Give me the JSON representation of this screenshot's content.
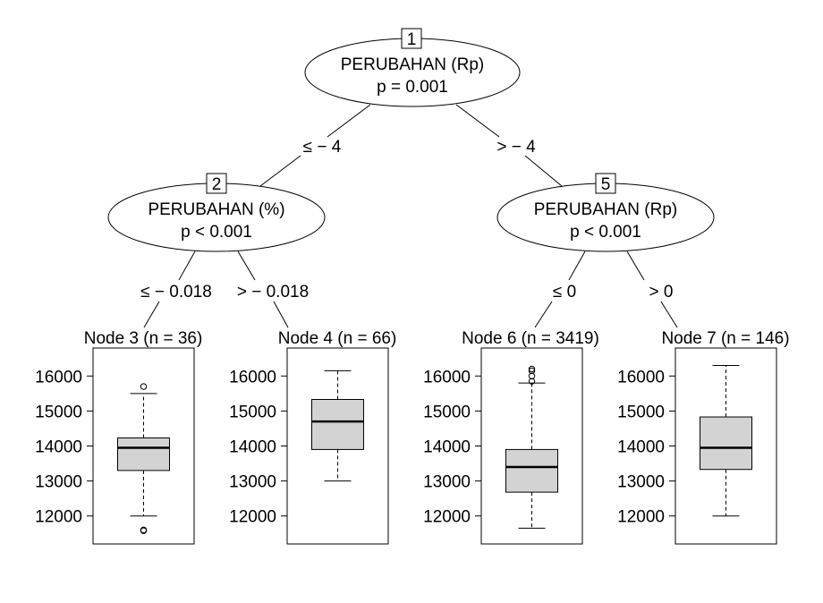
{
  "inner_nodes": [
    {
      "id": "1",
      "variable": "PERUBAHAN (Rp)",
      "pvalue": "p = 0.001"
    },
    {
      "id": "2",
      "variable": "PERUBAHAN (%)",
      "pvalue": "p < 0.001"
    },
    {
      "id": "5",
      "variable": "PERUBAHAN (Rp)",
      "pvalue": "p < 0.001"
    }
  ],
  "edge_labels": {
    "n1_left": "≤ − 4",
    "n1_right": "> − 4",
    "n2_left": "≤ − 0.018",
    "n2_right": "> − 0.018",
    "n5_left": "≤ 0",
    "n5_right": "> 0"
  },
  "chart_data": [
    {
      "type": "boxplot",
      "title": "Node 3 (n = 36)",
      "ylim": [
        11200,
        16800
      ],
      "yticks": [
        12000,
        13000,
        14000,
        15000,
        16000
      ],
      "ytick_labels": [
        "12000",
        "13000",
        "14000",
        "15000",
        "16000"
      ],
      "box": {
        "whisker_low": 12000,
        "q1": 13300,
        "median": 13950,
        "q3": 14230,
        "whisker_high": 15500
      },
      "outliers": [
        15700,
        11600,
        11580
      ]
    },
    {
      "type": "boxplot",
      "title": "Node 4 (n = 66)",
      "ylim": [
        11200,
        16800
      ],
      "yticks": [
        12000,
        13000,
        14000,
        15000,
        16000
      ],
      "ytick_labels": [
        "12000",
        "13000",
        "14000",
        "15000",
        "16000"
      ],
      "box": {
        "whisker_low": 13000,
        "q1": 13900,
        "median": 14700,
        "q3": 15330,
        "whisker_high": 16150
      },
      "outliers": []
    },
    {
      "type": "boxplot",
      "title": "Node 6 (n = 3419)",
      "ylim": [
        11200,
        16800
      ],
      "yticks": [
        12000,
        13000,
        14000,
        15000,
        16000
      ],
      "ytick_labels": [
        "12000",
        "13000",
        "14000",
        "15000",
        "16000"
      ],
      "box": {
        "whisker_low": 11650,
        "q1": 12680,
        "median": 13400,
        "q3": 13900,
        "whisker_high": 15800
      },
      "outliers": [
        15850,
        16000,
        16150,
        16200
      ]
    },
    {
      "type": "boxplot",
      "title": "Node 7 (n = 146)",
      "ylim": [
        11200,
        16800
      ],
      "yticks": [
        12000,
        13000,
        14000,
        15000,
        16000
      ],
      "ytick_labels": [
        "12000",
        "13000",
        "14000",
        "15000",
        "16000"
      ],
      "box": {
        "whisker_low": 12000,
        "q1": 13330,
        "median": 13950,
        "q3": 14830,
        "whisker_high": 16300
      },
      "outliers": []
    }
  ],
  "colors": {
    "box_fill": "#d3d3d3",
    "stroke": "#000000",
    "background": "#ffffff"
  }
}
